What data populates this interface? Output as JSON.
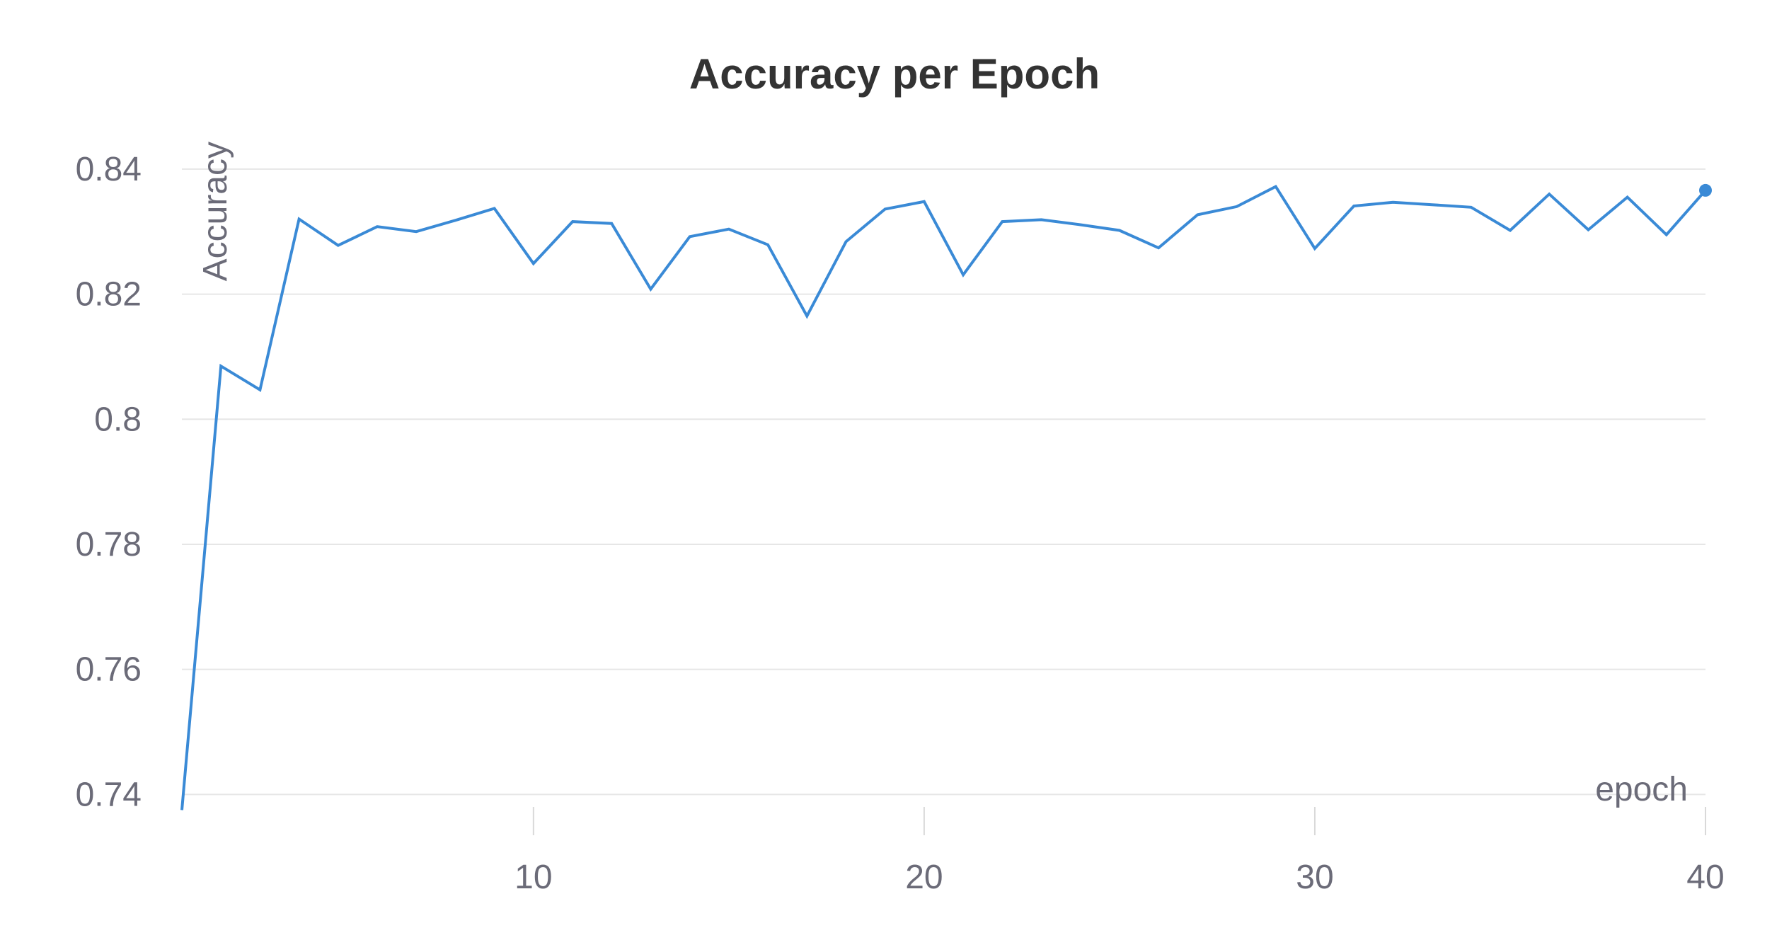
{
  "chart_data": {
    "type": "line",
    "title": "Accuracy per Epoch",
    "xlabel": "epoch",
    "ylabel": "Accuracy",
    "xlim": [
      1,
      40
    ],
    "ylim": [
      0.738,
      0.8444
    ],
    "x_ticks": [
      10,
      20,
      30,
      40
    ],
    "x_tick_labels": [
      "10",
      "20",
      "30",
      "40"
    ],
    "y_ticks": [
      0.74,
      0.76,
      0.78,
      0.8,
      0.82,
      0.84
    ],
    "y_tick_labels": [
      "0.74",
      "0.76",
      "0.78",
      "0.8",
      "0.82",
      "0.84"
    ],
    "grid": true,
    "legend": "none",
    "line_color": "#3a8ad6",
    "last_point_marker": true,
    "series": [
      {
        "x": [
          1,
          2,
          3,
          4,
          5,
          6,
          7,
          8,
          9,
          10,
          11,
          12,
          13,
          14,
          15,
          16,
          17,
          18,
          19,
          20,
          21,
          22,
          23,
          24,
          25,
          26,
          27,
          28,
          29,
          30,
          31,
          32,
          33,
          34,
          35,
          36,
          37,
          38,
          39,
          40
        ],
        "values": [
          0.7375,
          0.8085,
          0.8047,
          0.832,
          0.8278,
          0.8308,
          0.83,
          0.8318,
          0.8337,
          0.8249,
          0.8316,
          0.8313,
          0.8208,
          0.8292,
          0.8304,
          0.8279,
          0.8165,
          0.8284,
          0.8336,
          0.8348,
          0.8231,
          0.8316,
          0.8319,
          0.8311,
          0.8302,
          0.8274,
          0.8327,
          0.834,
          0.8372,
          0.8273,
          0.8341,
          0.8347,
          0.8343,
          0.8339,
          0.8302,
          0.836,
          0.8303,
          0.8355,
          0.8295,
          0.8366
        ]
      }
    ]
  }
}
